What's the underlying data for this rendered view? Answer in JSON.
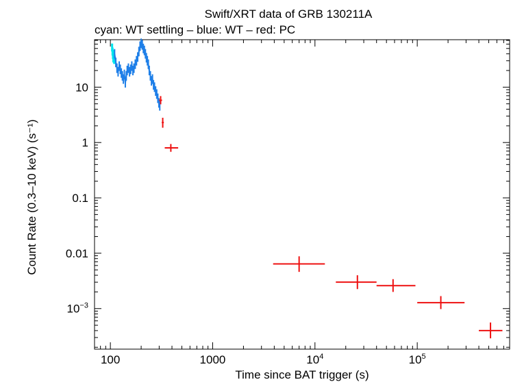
{
  "chart_data": {
    "type": "scatter",
    "title": "Swift/XRT data of GRB 130211A",
    "subtitle": "cyan: WT settling – blue: WT – red: PC",
    "xlabel": "Time since BAT trigger (s)",
    "ylabel": "Count Rate (0.3–10 keV) (s⁻¹)",
    "xscale": "log",
    "yscale": "log",
    "xlim": [
      70,
      800000
    ],
    "ylim": [
      0.000185,
      72
    ],
    "x_ticks": [
      {
        "value": 100,
        "label": "100"
      },
      {
        "value": 1000,
        "label": "1000"
      },
      {
        "value": 10000,
        "base": "10",
        "exp": "4"
      },
      {
        "value": 100000,
        "base": "10",
        "exp": "5"
      }
    ],
    "y_ticks": [
      {
        "value": 10,
        "label": "10"
      },
      {
        "value": 1,
        "label": "1"
      },
      {
        "value": 0.1,
        "label": "0.1"
      },
      {
        "value": 0.01,
        "label": "0.01"
      },
      {
        "value": 0.001,
        "base": "10",
        "exp": "−3"
      }
    ],
    "colors": {
      "wt_settling": "#00e5ee",
      "wt": "#1e7fe8",
      "pc": "#ee1010",
      "axis": "#000000"
    },
    "series": [
      {
        "name": "WT settling",
        "color": "#00e5ee",
        "points": [
          {
            "x": 104,
            "y": 52
          },
          {
            "x": 105,
            "y": 44
          },
          {
            "x": 106,
            "y": 38
          },
          {
            "x": 107,
            "y": 33
          },
          {
            "x": 108,
            "y": 40
          },
          {
            "x": 109,
            "y": 31
          }
        ]
      },
      {
        "name": "WT",
        "color": "#1e7fe8",
        "points": [
          {
            "x": 110,
            "y": 40
          },
          {
            "x": 113,
            "y": 28
          },
          {
            "x": 116,
            "y": 22
          },
          {
            "x": 119,
            "y": 19
          },
          {
            "x": 122,
            "y": 24
          },
          {
            "x": 125,
            "y": 21
          },
          {
            "x": 128,
            "y": 18
          },
          {
            "x": 131,
            "y": 16
          },
          {
            "x": 134,
            "y": 14
          },
          {
            "x": 137,
            "y": 17
          },
          {
            "x": 140,
            "y": 12
          },
          {
            "x": 143,
            "y": 16
          },
          {
            "x": 146,
            "y": 20
          },
          {
            "x": 150,
            "y": 22
          },
          {
            "x": 154,
            "y": 19
          },
          {
            "x": 158,
            "y": 21
          },
          {
            "x": 162,
            "y": 24
          },
          {
            "x": 166,
            "y": 20
          },
          {
            "x": 170,
            "y": 22
          },
          {
            "x": 175,
            "y": 26
          },
          {
            "x": 180,
            "y": 30
          },
          {
            "x": 185,
            "y": 35
          },
          {
            "x": 190,
            "y": 44
          },
          {
            "x": 195,
            "y": 55
          },
          {
            "x": 200,
            "y": 62
          },
          {
            "x": 205,
            "y": 58
          },
          {
            "x": 210,
            "y": 50
          },
          {
            "x": 215,
            "y": 46
          },
          {
            "x": 220,
            "y": 40
          },
          {
            "x": 225,
            "y": 34
          },
          {
            "x": 230,
            "y": 30
          },
          {
            "x": 235,
            "y": 26
          },
          {
            "x": 240,
            "y": 20
          },
          {
            "x": 246,
            "y": 16
          },
          {
            "x": 252,
            "y": 13
          },
          {
            "x": 258,
            "y": 14
          },
          {
            "x": 264,
            "y": 11
          },
          {
            "x": 270,
            "y": 10
          },
          {
            "x": 277,
            "y": 8.5
          },
          {
            "x": 284,
            "y": 7.5
          },
          {
            "x": 291,
            "y": 6.3
          },
          {
            "x": 298,
            "y": 5.2
          },
          {
            "x": 304,
            "y": 4.6
          }
        ]
      },
      {
        "name": "PC",
        "color": "#ee1010",
        "points": [
          {
            "x": 310,
            "y": 5.8,
            "xlo": 300,
            "xhi": 320,
            "ylo": 4.9,
            "yhi": 6.9
          },
          {
            "x": 325,
            "y": 2.3,
            "xlo": 318,
            "xhi": 333,
            "ylo": 1.85,
            "yhi": 2.8
          },
          {
            "x": 390,
            "y": 0.8,
            "xlo": 340,
            "xhi": 460,
            "ylo": 0.68,
            "yhi": 0.94
          },
          {
            "x": 7000,
            "y": 0.0064,
            "xlo": 3900,
            "xhi": 12500,
            "ylo": 0.0046,
            "yhi": 0.0088
          },
          {
            "x": 26000,
            "y": 0.003,
            "xlo": 16000,
            "xhi": 40000,
            "ylo": 0.00225,
            "yhi": 0.004
          },
          {
            "x": 58000,
            "y": 0.0026,
            "xlo": 40000,
            "xhi": 96000,
            "ylo": 0.002,
            "yhi": 0.0034
          },
          {
            "x": 170000,
            "y": 0.00128,
            "xlo": 100000,
            "xhi": 290000,
            "ylo": 0.00098,
            "yhi": 0.00168
          },
          {
            "x": 520000,
            "y": 0.0004,
            "xlo": 400000,
            "xhi": 680000,
            "ylo": 0.00029,
            "yhi": 0.00056
          }
        ]
      }
    ]
  }
}
